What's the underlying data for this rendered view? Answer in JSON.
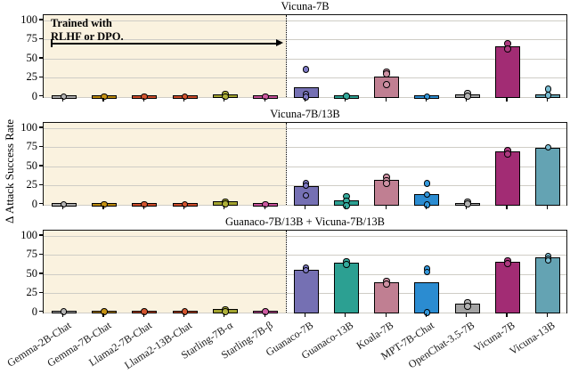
{
  "chart_data": {
    "type": "bar",
    "title": "",
    "ylabel": "Δ Attack Success Rate",
    "yticks": [
      0,
      25,
      50,
      75,
      100
    ],
    "ylim": [
      -2.5,
      107
    ],
    "grid": true,
    "categories": [
      "Gemma-2B-Chat",
      "Gemma-7B-Chat",
      "Llama2-7B-Chat",
      "Llama2-13B-Chat",
      "Starling-7B-α",
      "Starling-7B-β",
      "Guanaco-7B",
      "Guanaco-13B",
      "Koala-7B",
      "MPT-7B-Chat",
      "OpenChat-3.5-7B",
      "Vicuna-7B",
      "Vicuna-13B"
    ],
    "bar_colors": [
      "#a8a8a8",
      "#b8860b",
      "#cb4a28",
      "#cb4a28",
      "#a2a32e",
      "#c44f97",
      "#7570b3",
      "#2ca092",
      "#c07f92",
      "#2b8cd1",
      "#a3a3a3",
      "#a22c74",
      "#64a3b3"
    ],
    "dot_colors": [
      "#b5b5b5",
      "#c69214",
      "#d4552f",
      "#d4552f",
      "#aeb03a",
      "#ce5ba2",
      "#7f7bc7",
      "#35ab9d",
      "#cf92a4",
      "#3399dd",
      "#b3b3b3",
      "#ae3a80",
      "#79bdd3"
    ],
    "rlhf_group_size": 6,
    "group_background": "#faf2df",
    "annotation": {
      "line1": "Trained with",
      "line2": "RLHF or DPO.",
      "arrow_value": 70
    },
    "panels": [
      {
        "title": "Vicuna-7B",
        "bar_values": [
          1,
          1,
          1,
          1,
          2.5,
          1,
          12,
          1,
          26,
          0.7,
          2,
          65,
          2
        ],
        "dot_values": [
          [
            0.5
          ],
          [
            0.5
          ],
          [
            0.5
          ],
          [
            0.5
          ],
          [
            4,
            0.5
          ],
          [
            0.5
          ],
          [
            36,
            4,
            0
          ],
          [
            1
          ],
          [
            33,
            30,
            16
          ],
          [
            0.5
          ],
          [
            5,
            1
          ],
          [
            70,
            63
          ],
          [
            10,
            2
          ]
        ]
      },
      {
        "title": "Vicuna-7B/13B",
        "bar_values": [
          1,
          1,
          1,
          1,
          3,
          1,
          23,
          5,
          31,
          13,
          1.5,
          68,
          73
        ],
        "dot_values": [
          [
            0.5
          ],
          [
            0.5
          ],
          [
            0.5
          ],
          [
            0.5
          ],
          [
            4,
            1
          ],
          [
            0.5
          ],
          [
            28,
            25,
            12
          ],
          [
            11,
            5,
            -1
          ],
          [
            36,
            32,
            28
          ],
          [
            28,
            13,
            0
          ],
          [
            4,
            1
          ],
          [
            71,
            66
          ],
          [
            75
          ]
        ]
      },
      {
        "title": "Guanaco-7B/13B + Vicuna-7B/13B",
        "bar_values": [
          1.5,
          1.5,
          1.5,
          1.5,
          3,
          1.5,
          55,
          64,
          38,
          38,
          10,
          65,
          71
        ],
        "dot_values": [
          [
            1
          ],
          [
            1
          ],
          [
            1
          ],
          [
            1
          ],
          [
            4,
            1
          ],
          [
            1
          ],
          [
            58,
            55
          ],
          [
            67,
            63
          ],
          [
            41,
            37
          ],
          [
            57,
            53,
            0
          ],
          [
            13,
            8
          ],
          [
            68,
            64
          ],
          [
            74,
            70,
            68
          ]
        ]
      }
    ]
  }
}
